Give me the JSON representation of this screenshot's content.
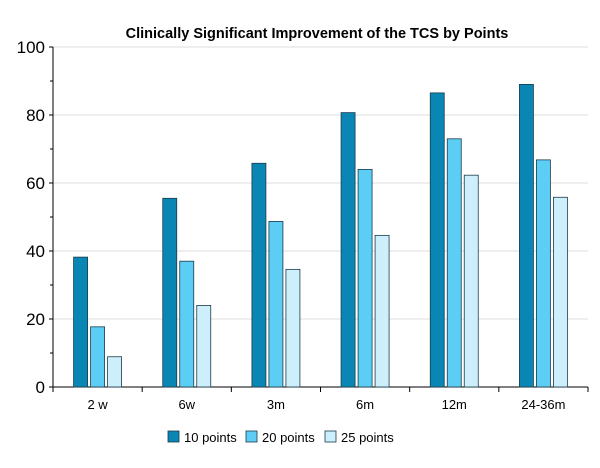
{
  "chart_data": {
    "type": "bar",
    "title": "Clinically Significant Improvement of the TCS by Points",
    "xlabel": "",
    "ylabel": "",
    "ylim": [
      0,
      100
    ],
    "yticks": [
      0,
      20,
      40,
      60,
      80,
      100
    ],
    "grid": true,
    "legend_position": "bottom",
    "categories": [
      "2 w",
      "6w",
      "3m",
      "6m",
      "12m",
      "24-36m"
    ],
    "series": [
      {
        "name": "10 points",
        "color": "#0a86b5",
        "values": [
          38.2,
          55.5,
          65.8,
          80.7,
          86.5,
          89.0
        ]
      },
      {
        "name": "20 points",
        "color": "#5ccdf5",
        "values": [
          17.7,
          37.0,
          48.7,
          64.0,
          73.0,
          66.8
        ]
      },
      {
        "name": "25 points",
        "color": "#cdeefb",
        "values": [
          8.9,
          24.0,
          34.6,
          44.6,
          62.3,
          55.8
        ]
      }
    ]
  }
}
